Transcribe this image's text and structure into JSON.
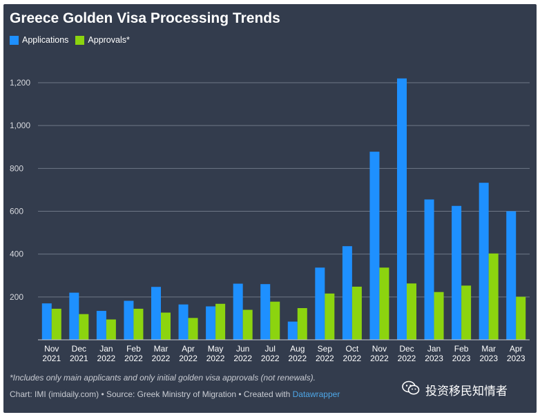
{
  "title": "Greece Golden Visa Processing Trends",
  "footnote": "*Includes only main applicants and only initial golden visa approvals (not renewals).",
  "source": {
    "prefix": "Chart: IMI (imidaily.com) • Source: Greek Ministry of Migration • Created with ",
    "link": "Datawrapper"
  },
  "watermark": {
    "text": "投资移民知情者",
    "icon": "wechat-icon"
  },
  "colors": {
    "background": "#333c4d",
    "applications": "#1e90ff",
    "approvals": "#8cd40f"
  },
  "chart_data": {
    "type": "bar",
    "x": [
      [
        "Nov",
        "2021"
      ],
      [
        "Dec",
        "2021"
      ],
      [
        "Jan",
        "2022"
      ],
      [
        "Feb",
        "2022"
      ],
      [
        "Mar",
        "2022"
      ],
      [
        "Apr",
        "2022"
      ],
      [
        "May",
        "2022"
      ],
      [
        "Jun",
        "2022"
      ],
      [
        "Jul",
        "2022"
      ],
      [
        "Aug",
        "2022"
      ],
      [
        "Sep",
        "2022"
      ],
      [
        "Oct",
        "2022"
      ],
      [
        "Nov",
        "2022"
      ],
      [
        "Dec",
        "2022"
      ],
      [
        "Jan",
        "2023"
      ],
      [
        "Feb",
        "2023"
      ],
      [
        "Mar",
        "2023"
      ],
      [
        "Apr",
        "2023"
      ]
    ],
    "series": [
      {
        "name": "Applications",
        "color": "#1e90ff",
        "values": [
          170,
          220,
          135,
          182,
          247,
          165,
          156,
          262,
          260,
          85,
          337,
          437,
          878,
          1220,
          655,
          625,
          733,
          600
        ]
      },
      {
        "name": "Approvals*",
        "color": "#8cd40f",
        "values": [
          145,
          120,
          95,
          145,
          127,
          102,
          168,
          140,
          178,
          148,
          216,
          248,
          337,
          263,
          223,
          253,
          403,
          201
        ]
      }
    ],
    "yticks": [
      200,
      400,
      600,
      800,
      1000,
      1200
    ],
    "yticklabels": [
      "200",
      "400",
      "600",
      "800",
      "1,000",
      "1,200"
    ],
    "ylim": [
      0,
      1200
    ],
    "legend": "top-left",
    "grid": true
  }
}
